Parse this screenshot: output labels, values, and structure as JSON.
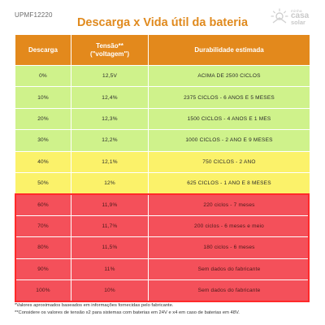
{
  "header": {
    "code": "UPMF12220",
    "title": "Descarga x Vida útil da bateria"
  },
  "logo": {
    "top": "minha",
    "mid": "casa",
    "bottom": "solar",
    "color": "#c8c8c8"
  },
  "colors": {
    "header": "#e3891c",
    "title": "#e08a1e",
    "green": "#cff28b",
    "yellow": "#fbf26a",
    "red": "#f4505a"
  },
  "table": {
    "columns": [
      "Descarga",
      "Tensão**\n(\"voltagem\")",
      "Durabilidade estimada"
    ],
    "rows": [
      {
        "discharge": "0%",
        "voltage": "12,5V",
        "durability": "ACIMA DE 2500 CICLOS",
        "color": "green"
      },
      {
        "discharge": "10%",
        "voltage": "12,4%",
        "durability": "2375 CICLOS - 6 ANOS E 5 MESES",
        "color": "green"
      },
      {
        "discharge": "20%",
        "voltage": "12,3%",
        "durability": "1500 CICLOS - 4 ANOS E 1 MES",
        "color": "green"
      },
      {
        "discharge": "30%",
        "voltage": "12,2%",
        "durability": "1000 CICLOS - 2 ANO E 9 MESES",
        "color": "green"
      },
      {
        "discharge": "40%",
        "voltage": "12,1%",
        "durability": "750 CICLOS - 2 ANO",
        "color": "yellow"
      },
      {
        "discharge": "50%",
        "voltage": "12%",
        "durability": "625 CICLOS - 1 ANO E 8 MESES",
        "color": "yellow"
      },
      {
        "discharge": "60%",
        "voltage": "11,9%",
        "durability": "220 ciclos - 7 meses",
        "color": "red"
      },
      {
        "discharge": "70%",
        "voltage": "11,7%",
        "durability": "200 ciclos - 6 meses e meio",
        "color": "red"
      },
      {
        "discharge": "80%",
        "voltage": "11,5%",
        "durability": "180 ciclos - 6 meses",
        "color": "red"
      },
      {
        "discharge": "90%",
        "voltage": "11%",
        "durability": "Sem dados do fabricante",
        "color": "red"
      },
      {
        "discharge": "100%",
        "voltage": "10%",
        "durability": "Sem dados do fabricante",
        "color": "red"
      }
    ]
  },
  "footnotes": [
    "*Valores aproximados baseados em informações fornecidas pelo fabricante.",
    "**Considere os valores de tensão x2 para sistemas com baterias em 24V e x4 em caso de baterias em 48V."
  ]
}
